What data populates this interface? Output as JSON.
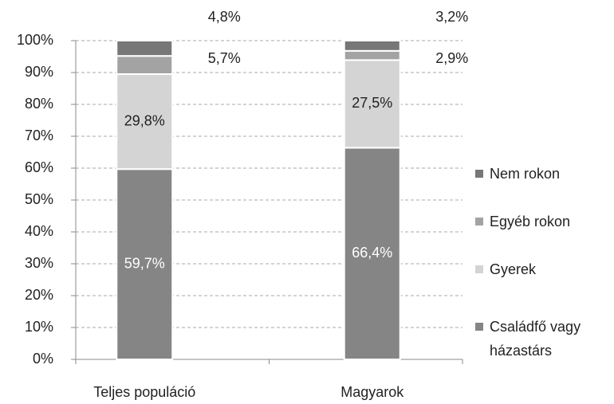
{
  "chart_data": {
    "type": "stacked_bar",
    "categories": [
      "Teljes populáció",
      "Magyarok"
    ],
    "series": [
      {
        "name": "Családfő vagy házastárs",
        "color": "#858585",
        "values": [
          59.7,
          66.4
        ],
        "value_labels": [
          "59,7%",
          "66,4%"
        ]
      },
      {
        "name": "Gyerek",
        "color": "#d4d4d4",
        "values": [
          29.8,
          27.5
        ],
        "value_labels": [
          "29,8%",
          "27,5%"
        ]
      },
      {
        "name": "Egyéb rokon",
        "color": "#a3a3a3",
        "values": [
          5.7,
          2.9
        ],
        "value_labels": [
          "5,7%",
          "2,9%"
        ]
      },
      {
        "name": "Nem rokon",
        "color": "#777777",
        "values": [
          4.8,
          3.2
        ],
        "value_labels": [
          "4,8%",
          "3,2%"
        ]
      }
    ],
    "ylim": [
      0,
      100
    ],
    "yticks": [
      {
        "value": 0,
        "label": "0%"
      },
      {
        "value": 10,
        "label": "10%"
      },
      {
        "value": 20,
        "label": "20%"
      },
      {
        "value": 30,
        "label": "30%"
      },
      {
        "value": 40,
        "label": "40%"
      },
      {
        "value": 50,
        "label": "50%"
      },
      {
        "value": 60,
        "label": "60%"
      },
      {
        "value": 70,
        "label": "70%"
      },
      {
        "value": 80,
        "label": "80%"
      },
      {
        "value": 90,
        "label": "90%"
      },
      {
        "value": 100,
        "label": "100%"
      }
    ],
    "grid": true
  }
}
